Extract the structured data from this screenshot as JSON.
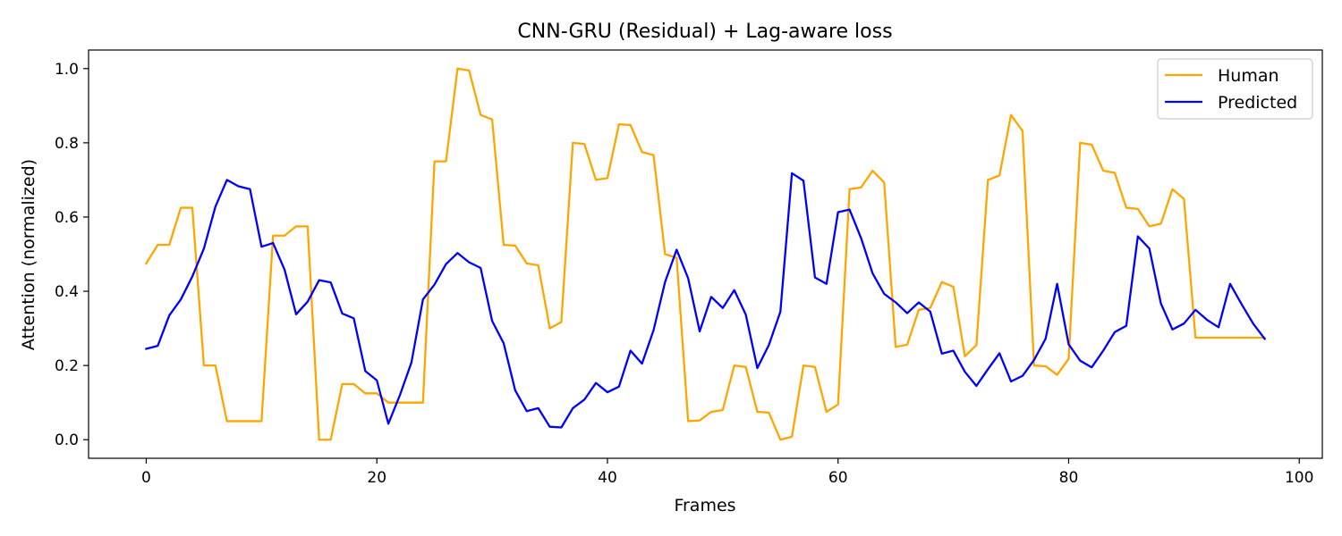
{
  "chart_data": {
    "type": "line",
    "title": "CNN-GRU (Residual) + Lag-aware loss",
    "xlabel": "Frames",
    "ylabel": "Attention (normalized)",
    "xlim": [
      -5,
      102
    ],
    "ylim": [
      -0.05,
      1.05
    ],
    "xticks": [
      0,
      20,
      40,
      60,
      80,
      100
    ],
    "yticks": [
      0.0,
      0.2,
      0.4,
      0.6,
      0.8,
      1.0
    ],
    "grid": false,
    "legend_position": "top-right",
    "x": [
      0,
      1,
      2,
      3,
      4,
      5,
      6,
      7,
      8,
      9,
      10,
      11,
      12,
      13,
      14,
      15,
      16,
      17,
      18,
      19,
      20,
      21,
      22,
      23,
      24,
      25,
      26,
      27,
      28,
      29,
      30,
      31,
      32,
      33,
      34,
      35,
      36,
      37,
      38,
      39,
      40,
      41,
      42,
      43,
      44,
      45,
      46,
      47,
      48,
      49,
      50,
      51,
      52,
      53,
      54,
      55,
      56,
      57,
      58,
      59,
      60,
      61,
      62,
      63,
      64,
      65,
      66,
      67,
      68,
      69,
      70,
      71,
      72,
      73,
      74,
      75,
      76,
      77,
      78,
      79,
      80,
      81,
      82,
      83,
      84,
      85,
      86,
      87,
      88,
      89,
      90,
      91,
      92,
      93,
      94,
      95,
      96,
      97
    ],
    "series": [
      {
        "name": "Human",
        "color": "#ffa500",
        "values": [
          0.475,
          0.525,
          0.525,
          0.625,
          0.625,
          0.2,
          0.2,
          0.05,
          0.05,
          0.05,
          0.05,
          0.55,
          0.55,
          0.575,
          0.575,
          0.0,
          0.0,
          0.15,
          0.15,
          0.125,
          0.125,
          0.1,
          0.1,
          0.1,
          0.1,
          0.75,
          0.75,
          1.0,
          0.995,
          0.875,
          0.863,
          0.525,
          0.523,
          0.475,
          0.47,
          0.3,
          0.317,
          0.8,
          0.797,
          0.7,
          0.705,
          0.85,
          0.848,
          0.775,
          0.767,
          0.5,
          0.49,
          0.05,
          0.052,
          0.075,
          0.08,
          0.2,
          0.196,
          0.075,
          0.073,
          0.0,
          0.008,
          0.2,
          0.196,
          0.075,
          0.095,
          0.675,
          0.68,
          0.725,
          0.693,
          0.25,
          0.256,
          0.35,
          0.355,
          0.425,
          0.412,
          0.225,
          0.255,
          0.7,
          0.712,
          0.875,
          0.832,
          0.2,
          0.198,
          0.175,
          0.218,
          0.8,
          0.795,
          0.725,
          0.719,
          0.625,
          0.622,
          0.575,
          0.582,
          0.675,
          0.649,
          0.275,
          0.275,
          0.275,
          0.275,
          0.275,
          0.275,
          0.275
        ]
      },
      {
        "name": "Predicted",
        "color": "#0000ff",
        "values": [
          0.245,
          0.253,
          0.335,
          0.378,
          0.44,
          0.515,
          0.628,
          0.7,
          0.683,
          0.675,
          0.52,
          0.53,
          0.458,
          0.338,
          0.372,
          0.43,
          0.424,
          0.34,
          0.327,
          0.185,
          0.16,
          0.043,
          0.12,
          0.208,
          0.378,
          0.418,
          0.473,
          0.503,
          0.478,
          0.463,
          0.32,
          0.26,
          0.133,
          0.077,
          0.085,
          0.035,
          0.033,
          0.085,
          0.108,
          0.153,
          0.128,
          0.143,
          0.24,
          0.205,
          0.295,
          0.425,
          0.512,
          0.435,
          0.292,
          0.385,
          0.355,
          0.403,
          0.337,
          0.193,
          0.255,
          0.345,
          0.718,
          0.698,
          0.437,
          0.42,
          0.613,
          0.62,
          0.543,
          0.448,
          0.393,
          0.37,
          0.341,
          0.37,
          0.345,
          0.232,
          0.24,
          0.183,
          0.145,
          0.19,
          0.233,
          0.157,
          0.172,
          0.215,
          0.272,
          0.42,
          0.257,
          0.213,
          0.195,
          0.24,
          0.29,
          0.307,
          0.548,
          0.515,
          0.367,
          0.297,
          0.313,
          0.35,
          0.323,
          0.303,
          0.42,
          0.365,
          0.313,
          0.272
        ]
      }
    ]
  }
}
